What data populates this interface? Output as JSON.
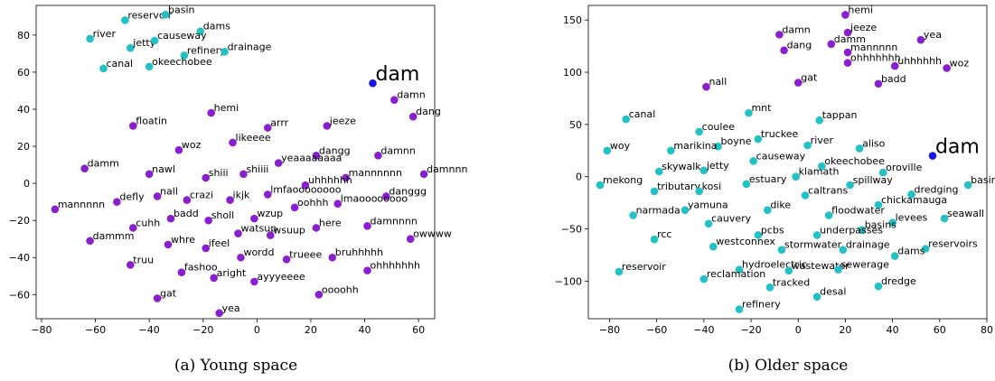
{
  "colors": {
    "teal": "#22c1c3",
    "purple": "#8a1fd0",
    "blue": "#1515e8"
  },
  "chart_data": [
    {
      "type": "scatter",
      "caption": "(a) Young space",
      "xlim": [
        -82,
        66
      ],
      "ylim": [
        -73,
        96
      ],
      "xticks": [
        -80,
        -60,
        -40,
        -20,
        0,
        20,
        40,
        60
      ],
      "yticks": [
        -60,
        -40,
        -20,
        0,
        20,
        40,
        60,
        80
      ],
      "grid": false,
      "points": [
        {
          "label": "reservoir",
          "x": -49,
          "y": 88,
          "color": "teal"
        },
        {
          "label": "basin",
          "x": -34,
          "y": 91,
          "color": "teal"
        },
        {
          "label": "dams",
          "x": -21,
          "y": 82,
          "color": "teal"
        },
        {
          "label": "river",
          "x": -62,
          "y": 78,
          "color": "teal"
        },
        {
          "label": "jetty",
          "x": -47,
          "y": 73,
          "color": "teal"
        },
        {
          "label": "causeway",
          "x": -38,
          "y": 77,
          "color": "teal"
        },
        {
          "label": "refinery",
          "x": -27,
          "y": 69,
          "color": "teal"
        },
        {
          "label": "drainage",
          "x": -12,
          "y": 71,
          "color": "teal"
        },
        {
          "label": "canal",
          "x": -57,
          "y": 62,
          "color": "teal"
        },
        {
          "label": "okeechobee",
          "x": -40,
          "y": 63,
          "color": "teal"
        },
        {
          "label": "dam",
          "x": 43,
          "y": 54,
          "color": "blue",
          "big": true
        },
        {
          "label": "damn",
          "x": 51,
          "y": 45,
          "color": "purple"
        },
        {
          "label": "dang",
          "x": 58,
          "y": 36,
          "color": "purple"
        },
        {
          "label": "hemi",
          "x": -17,
          "y": 38,
          "color": "purple"
        },
        {
          "label": "floatin",
          "x": -46,
          "y": 31,
          "color": "purple"
        },
        {
          "label": "arrr",
          "x": 4,
          "y": 30,
          "color": "purple"
        },
        {
          "label": "jeeze",
          "x": 26,
          "y": 31,
          "color": "purple"
        },
        {
          "label": "likeeee",
          "x": -9,
          "y": 22,
          "color": "purple"
        },
        {
          "label": "woz",
          "x": -29,
          "y": 18,
          "color": "purple"
        },
        {
          "label": "dangg",
          "x": 22,
          "y": 15,
          "color": "purple"
        },
        {
          "label": "damnn",
          "x": 45,
          "y": 15,
          "color": "purple"
        },
        {
          "label": "yeaaaaaaaa",
          "x": 8,
          "y": 11,
          "color": "purple"
        },
        {
          "label": "damm",
          "x": -64,
          "y": 8,
          "color": "purple"
        },
        {
          "label": "nawl",
          "x": -40,
          "y": 5,
          "color": "purple"
        },
        {
          "label": "shiii",
          "x": -19,
          "y": 3,
          "color": "purple"
        },
        {
          "label": "shiiii",
          "x": -5,
          "y": 5,
          "color": "purple"
        },
        {
          "label": "mannnnnn",
          "x": 33,
          "y": 3,
          "color": "purple"
        },
        {
          "label": "damnnn",
          "x": 62,
          "y": 5,
          "color": "purple"
        },
        {
          "label": "uhhhhhh",
          "x": 18,
          "y": -1,
          "color": "purple"
        },
        {
          "label": "nall",
          "x": -37,
          "y": -7,
          "color": "purple"
        },
        {
          "label": "crazi",
          "x": -26,
          "y": -9,
          "color": "purple"
        },
        {
          "label": "ikjk",
          "x": -10,
          "y": -9,
          "color": "purple"
        },
        {
          "label": "lmfaoooooooo",
          "x": 4,
          "y": -6,
          "color": "purple"
        },
        {
          "label": "danggg",
          "x": 48,
          "y": -7,
          "color": "purple"
        },
        {
          "label": "defly",
          "x": -52,
          "y": -10,
          "color": "purple"
        },
        {
          "label": "lmaoooooooo",
          "x": 30,
          "y": -11,
          "color": "purple"
        },
        {
          "label": "mannnnn",
          "x": -75,
          "y": -14,
          "color": "purple"
        },
        {
          "label": "oohhh",
          "x": 14,
          "y": -13,
          "color": "purple"
        },
        {
          "label": "badd",
          "x": -32,
          "y": -19,
          "color": "purple"
        },
        {
          "label": "sholl",
          "x": -18,
          "y": -20,
          "color": "purple"
        },
        {
          "label": "wzup",
          "x": -1,
          "y": -19,
          "color": "purple"
        },
        {
          "label": "cuhh",
          "x": -46,
          "y": -24,
          "color": "purple"
        },
        {
          "label": "here",
          "x": 22,
          "y": -24,
          "color": "purple"
        },
        {
          "label": "damnnnn",
          "x": 41,
          "y": -23,
          "color": "purple"
        },
        {
          "label": "watsup",
          "x": -7,
          "y": -27,
          "color": "purple"
        },
        {
          "label": "wsuup",
          "x": 5,
          "y": -28,
          "color": "purple"
        },
        {
          "label": "dammm",
          "x": -62,
          "y": -31,
          "color": "purple"
        },
        {
          "label": "whre",
          "x": -33,
          "y": -33,
          "color": "purple"
        },
        {
          "label": "ifeel",
          "x": -19,
          "y": -35,
          "color": "purple"
        },
        {
          "label": "owwww",
          "x": 57,
          "y": -30,
          "color": "purple"
        },
        {
          "label": "wordd",
          "x": -6,
          "y": -40,
          "color": "purple"
        },
        {
          "label": "trueee",
          "x": 11,
          "y": -41,
          "color": "purple"
        },
        {
          "label": "bruhhhhh",
          "x": 28,
          "y": -40,
          "color": "purple"
        },
        {
          "label": "truu",
          "x": -47,
          "y": -44,
          "color": "purple"
        },
        {
          "label": "ohhhhhhh",
          "x": 41,
          "y": -47,
          "color": "purple"
        },
        {
          "label": "fashoo",
          "x": -28,
          "y": -48,
          "color": "purple"
        },
        {
          "label": "aright",
          "x": -16,
          "y": -51,
          "color": "purple"
        },
        {
          "label": "ayyyeeee",
          "x": -1,
          "y": -53,
          "color": "purple"
        },
        {
          "label": "oooohh",
          "x": 23,
          "y": -60,
          "color": "purple"
        },
        {
          "label": "gat",
          "x": -37,
          "y": -62,
          "color": "purple"
        },
        {
          "label": "yea",
          "x": -14,
          "y": -70,
          "color": "purple"
        }
      ]
    },
    {
      "type": "scatter",
      "caption": "(b) Older space",
      "xlim": [
        -89,
        80
      ],
      "ylim": [
        -136,
        164
      ],
      "xticks": [
        -80,
        -60,
        -40,
        -20,
        0,
        20,
        40,
        60,
        80
      ],
      "yticks": [
        -100,
        -50,
        0,
        50,
        100,
        150
      ],
      "grid": false,
      "points": [
        {
          "label": "hemi",
          "x": 20,
          "y": 155,
          "color": "purple"
        },
        {
          "label": "damn",
          "x": -8,
          "y": 136,
          "color": "purple"
        },
        {
          "label": "jeeze",
          "x": 21,
          "y": 138,
          "color": "purple"
        },
        {
          "label": "yea",
          "x": 52,
          "y": 131,
          "color": "purple"
        },
        {
          "label": "damm",
          "x": 14,
          "y": 127,
          "color": "purple"
        },
        {
          "label": "dang",
          "x": -6,
          "y": 121,
          "color": "purple"
        },
        {
          "label": "mannnnn",
          "x": 21,
          "y": 119,
          "color": "purple"
        },
        {
          "label": "ohhhhhhh",
          "x": 21,
          "y": 109,
          "color": "purple"
        },
        {
          "label": "uhhhhhh",
          "x": 41,
          "y": 106,
          "color": "purple"
        },
        {
          "label": "woz",
          "x": 63,
          "y": 104,
          "color": "purple"
        },
        {
          "label": "gat",
          "x": 0,
          "y": 90,
          "color": "purple"
        },
        {
          "label": "badd",
          "x": 34,
          "y": 89,
          "color": "purple"
        },
        {
          "label": "nall",
          "x": -39,
          "y": 86,
          "color": "purple"
        },
        {
          "label": "mnt",
          "x": -21,
          "y": 61,
          "color": "teal"
        },
        {
          "label": "tappan",
          "x": 9,
          "y": 54,
          "color": "teal"
        },
        {
          "label": "canal",
          "x": -73,
          "y": 55,
          "color": "teal"
        },
        {
          "label": "coulee",
          "x": -42,
          "y": 43,
          "color": "teal"
        },
        {
          "label": "truckee",
          "x": -17,
          "y": 36,
          "color": "teal"
        },
        {
          "label": "boyne",
          "x": -34,
          "y": 29,
          "color": "teal"
        },
        {
          "label": "river",
          "x": 4,
          "y": 30,
          "color": "teal"
        },
        {
          "label": "aliso",
          "x": 26,
          "y": 27,
          "color": "teal"
        },
        {
          "label": "dam",
          "x": 57,
          "y": 20,
          "color": "blue",
          "big": true
        },
        {
          "label": "woy",
          "x": -81,
          "y": 25,
          "color": "teal"
        },
        {
          "label": "marikina",
          "x": -54,
          "y": 25,
          "color": "teal"
        },
        {
          "label": "causeway",
          "x": -19,
          "y": 15,
          "color": "teal"
        },
        {
          "label": "okeechobee",
          "x": 10,
          "y": 10,
          "color": "teal"
        },
        {
          "label": "oroville",
          "x": 36,
          "y": 4,
          "color": "teal"
        },
        {
          "label": "skywalk",
          "x": -59,
          "y": 5,
          "color": "teal"
        },
        {
          "label": "jetty",
          "x": -40,
          "y": 6,
          "color": "teal"
        },
        {
          "label": "klamath",
          "x": -1,
          "y": 0,
          "color": "teal"
        },
        {
          "label": "estuary",
          "x": -22,
          "y": -7,
          "color": "teal"
        },
        {
          "label": "spillway",
          "x": 22,
          "y": -8,
          "color": "teal"
        },
        {
          "label": "basin",
          "x": 72,
          "y": -8,
          "color": "teal"
        },
        {
          "label": "mekong",
          "x": -84,
          "y": -8,
          "color": "teal"
        },
        {
          "label": "tributary",
          "x": -61,
          "y": -14,
          "color": "teal"
        },
        {
          "label": "kosi",
          "x": -42,
          "y": -14,
          "color": "teal"
        },
        {
          "label": "caltrans",
          "x": 3,
          "y": -18,
          "color": "teal"
        },
        {
          "label": "dredging",
          "x": 48,
          "y": -17,
          "color": "teal"
        },
        {
          "label": "chickamauga",
          "x": 34,
          "y": -27,
          "color": "teal"
        },
        {
          "label": "yamuna",
          "x": -48,
          "y": -32,
          "color": "teal"
        },
        {
          "label": "dike",
          "x": -13,
          "y": -32,
          "color": "teal"
        },
        {
          "label": "narmada",
          "x": -70,
          "y": -37,
          "color": "teal"
        },
        {
          "label": "floodwater",
          "x": 13,
          "y": -37,
          "color": "teal"
        },
        {
          "label": "seawall",
          "x": 62,
          "y": -40,
          "color": "teal"
        },
        {
          "label": "levees",
          "x": 40,
          "y": -44,
          "color": "teal"
        },
        {
          "label": "cauvery",
          "x": -38,
          "y": -45,
          "color": "teal"
        },
        {
          "label": "basins",
          "x": 27,
          "y": -51,
          "color": "teal"
        },
        {
          "label": "pcbs",
          "x": -17,
          "y": -56,
          "color": "teal"
        },
        {
          "label": "underpasses",
          "x": 8,
          "y": -56,
          "color": "teal"
        },
        {
          "label": "rcc",
          "x": -61,
          "y": -60,
          "color": "teal"
        },
        {
          "label": "westconnex",
          "x": -36,
          "y": -67,
          "color": "teal"
        },
        {
          "label": "stormwater",
          "x": -7,
          "y": -70,
          "color": "teal"
        },
        {
          "label": "drainage",
          "x": 19,
          "y": -70,
          "color": "teal"
        },
        {
          "label": "reservoirs",
          "x": 54,
          "y": -69,
          "color": "teal"
        },
        {
          "label": "dams",
          "x": 41,
          "y": -76,
          "color": "teal"
        },
        {
          "label": "hydroelectric",
          "x": -25,
          "y": -89,
          "color": "teal"
        },
        {
          "label": "wastewater",
          "x": -4,
          "y": -90,
          "color": "teal"
        },
        {
          "label": "sewerage",
          "x": 17,
          "y": -89,
          "color": "teal"
        },
        {
          "label": "reservoir",
          "x": -76,
          "y": -91,
          "color": "teal"
        },
        {
          "label": "reclamation",
          "x": -40,
          "y": -98,
          "color": "teal"
        },
        {
          "label": "dredge",
          "x": 34,
          "y": -105,
          "color": "teal"
        },
        {
          "label": "tracked",
          "x": -12,
          "y": -106,
          "color": "teal"
        },
        {
          "label": "desal",
          "x": 8,
          "y": -115,
          "color": "teal"
        },
        {
          "label": "refinery",
          "x": -25,
          "y": -127,
          "color": "teal"
        }
      ]
    }
  ]
}
